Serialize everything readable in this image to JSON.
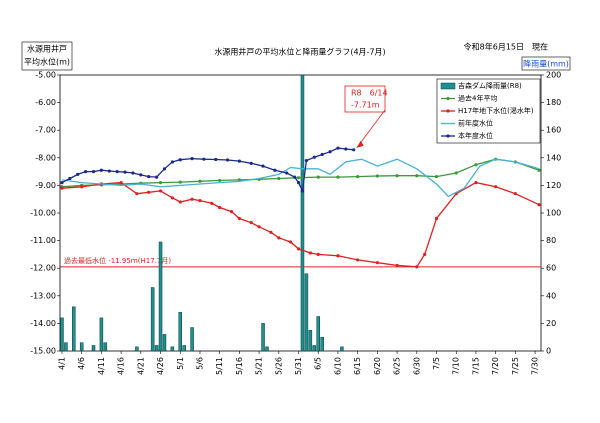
{
  "header": {
    "axis_title_lines": [
      "水源用井戸",
      "平均水位(m)"
    ],
    "date": "令和8年6月15日　現在"
  },
  "chart_data": {
    "type": "combo",
    "title": "水源用井戸の平均水位と降雨量グラフ(4月-7月)",
    "y2_label": "降雨量(mm)",
    "xlim": [
      -0.5,
      121.5
    ],
    "xticks": [
      {
        "value": 0,
        "label": "4/1"
      },
      {
        "value": 5,
        "label": "4/6"
      },
      {
        "value": 10,
        "label": "4/11"
      },
      {
        "value": 15,
        "label": "4/16"
      },
      {
        "value": 20,
        "label": "4/21"
      },
      {
        "value": 25,
        "label": "4/26"
      },
      {
        "value": 30,
        "label": "5/1"
      },
      {
        "value": 35,
        "label": "5/6"
      },
      {
        "value": 40,
        "label": "5/11"
      },
      {
        "value": 45,
        "label": "5/16"
      },
      {
        "value": 50,
        "label": "5/21"
      },
      {
        "value": 55,
        "label": "5/26"
      },
      {
        "value": 60,
        "label": "5/31"
      },
      {
        "value": 65,
        "label": "6/5"
      },
      {
        "value": 70,
        "label": "6/10"
      },
      {
        "value": 75,
        "label": "6/15"
      },
      {
        "value": 80,
        "label": "6/20"
      },
      {
        "value": 85,
        "label": "6/25"
      },
      {
        "value": 90,
        "label": "6/30"
      },
      {
        "value": 95,
        "label": "7/5"
      },
      {
        "value": 100,
        "label": "7/10"
      },
      {
        "value": 105,
        "label": "7/15"
      },
      {
        "value": 110,
        "label": "7/20"
      },
      {
        "value": 115,
        "label": "7/25"
      },
      {
        "value": 120,
        "label": "7/30"
      }
    ],
    "ylim": [
      -15,
      -5
    ],
    "yticks": [
      {
        "value": -5,
        "label": "-5.00"
      },
      {
        "value": -6,
        "label": "-6.00"
      },
      {
        "value": -7,
        "label": "-7.00"
      },
      {
        "value": -8,
        "label": "-8.00"
      },
      {
        "value": -9,
        "label": "-9.00"
      },
      {
        "value": -10,
        "label": "-10.00"
      },
      {
        "value": -11,
        "label": "-11.00"
      },
      {
        "value": -12,
        "label": "-12.00"
      },
      {
        "value": -13,
        "label": "-13.00"
      },
      {
        "value": -14,
        "label": "-14.00"
      },
      {
        "value": -15,
        "label": "-15.00"
      }
    ],
    "y2lim": [
      0,
      200
    ],
    "y2ticks": [
      0,
      20,
      40,
      60,
      80,
      100,
      120,
      140,
      160,
      180,
      200
    ],
    "grid": false,
    "legend": "top-right",
    "series": [
      {
        "name": "吉森ダム降雨量(R8)",
        "type": "bar",
        "axis": "y2",
        "color": "#1f8f8f",
        "x": [
          0,
          1,
          3,
          5,
          8,
          10,
          11,
          19,
          23,
          24,
          25,
          26,
          28,
          30,
          31,
          33,
          51,
          52,
          61,
          62,
          63,
          64,
          65,
          66,
          71
        ],
        "values": [
          24,
          6,
          32,
          6,
          4,
          24,
          6,
          3,
          46,
          4,
          79,
          12,
          3,
          28,
          4,
          17,
          20,
          3,
          200,
          56,
          15,
          4,
          25,
          10,
          3
        ]
      },
      {
        "name": "過去4年平均",
        "type": "line",
        "marker": true,
        "color": "#3c9a3c",
        "x": [
          0,
          5,
          10,
          15,
          20,
          25,
          30,
          35,
          40,
          45,
          50,
          55,
          60,
          65,
          70,
          75,
          80,
          85,
          90,
          95,
          100,
          105,
          110,
          115,
          121
        ],
        "values": [
          -9.05,
          -9.0,
          -8.98,
          -8.95,
          -8.92,
          -8.9,
          -8.88,
          -8.85,
          -8.82,
          -8.8,
          -8.78,
          -8.75,
          -8.72,
          -8.7,
          -8.7,
          -8.68,
          -8.66,
          -8.65,
          -8.65,
          -8.68,
          -8.55,
          -8.25,
          -8.05,
          -8.15,
          -8.45
        ]
      },
      {
        "name": "H17年地下水位(渇水年)",
        "type": "line",
        "marker": true,
        "color": "#e02020",
        "x": [
          0,
          5,
          10,
          15,
          19,
          22,
          25,
          28,
          30,
          33,
          35,
          38,
          40,
          43,
          45,
          48,
          50,
          53,
          55,
          58,
          60,
          63,
          65,
          70,
          75,
          80,
          85,
          90,
          92,
          95,
          100,
          105,
          110,
          115,
          121
        ],
        "values": [
          -9.1,
          -9.05,
          -8.95,
          -8.9,
          -9.3,
          -9.25,
          -9.2,
          -9.45,
          -9.6,
          -9.5,
          -9.55,
          -9.65,
          -9.8,
          -9.95,
          -10.2,
          -10.35,
          -10.5,
          -10.7,
          -10.9,
          -11.05,
          -11.3,
          -11.45,
          -11.5,
          -11.55,
          -11.7,
          -11.8,
          -11.9,
          -11.95,
          -11.5,
          -10.2,
          -9.3,
          -8.9,
          -9.05,
          -9.3,
          -9.7
        ]
      },
      {
        "name": "前年度水位",
        "type": "line",
        "marker": false,
        "color": "#4ab0d8",
        "x": [
          0,
          5,
          10,
          15,
          20,
          25,
          30,
          35,
          40,
          45,
          50,
          55,
          58,
          61,
          65,
          68,
          72,
          76,
          80,
          85,
          90,
          95,
          98,
          102,
          106,
          110,
          115,
          121
        ],
        "values": [
          -8.8,
          -8.9,
          -8.95,
          -9.0,
          -8.95,
          -9.05,
          -9.0,
          -8.95,
          -8.9,
          -8.85,
          -8.75,
          -8.6,
          -8.35,
          -8.4,
          -8.4,
          -8.6,
          -8.15,
          -8.05,
          -8.3,
          -8.05,
          -8.4,
          -8.95,
          -9.4,
          -9.1,
          -8.3,
          -8.05,
          -8.15,
          -8.4
        ]
      },
      {
        "name": "本年度水位",
        "type": "line",
        "marker": true,
        "color": "#1a2a8a",
        "x": [
          0,
          2,
          4,
          6,
          8,
          10,
          12,
          14,
          16,
          18,
          20,
          22,
          24,
          26,
          28,
          30,
          33,
          36,
          39,
          42,
          45,
          48,
          51,
          54,
          57,
          59,
          60,
          61,
          62,
          64,
          66,
          68,
          70,
          72,
          74
        ],
        "values": [
          -8.9,
          -8.75,
          -8.6,
          -8.5,
          -8.5,
          -8.45,
          -8.48,
          -8.5,
          -8.52,
          -8.55,
          -8.62,
          -8.68,
          -8.7,
          -8.4,
          -8.15,
          -8.07,
          -8.03,
          -8.05,
          -8.06,
          -8.08,
          -8.12,
          -8.2,
          -8.3,
          -8.45,
          -8.55,
          -8.7,
          -8.9,
          -9.2,
          -8.1,
          -7.98,
          -7.88,
          -7.78,
          -7.65,
          -7.68,
          -7.71
        ]
      }
    ],
    "ref_line": {
      "value": -11.95,
      "color": "#e02020",
      "label": "過去最低水位 -11.95ｍ(H17.7月)"
    },
    "annotation": {
      "x": 74,
      "y": -7.71,
      "lines": [
        "R8　6/14",
        "-7.71m"
      ],
      "color": "#e02020"
    }
  }
}
